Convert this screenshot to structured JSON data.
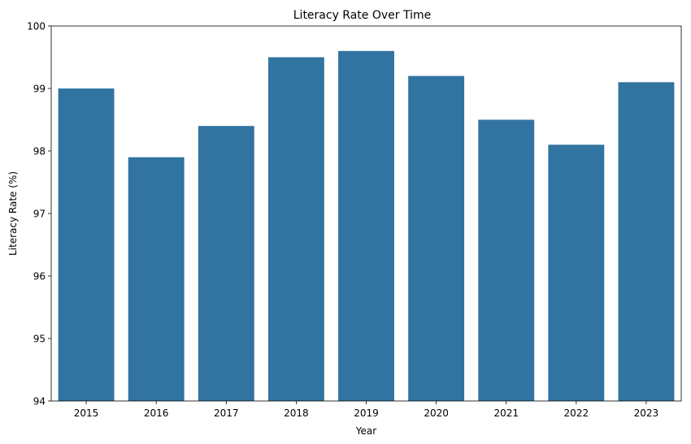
{
  "chart_data": {
    "type": "bar",
    "title": "Literacy Rate Over Time",
    "xlabel": "Year",
    "ylabel": "Literacy Rate (%)",
    "categories": [
      "2015",
      "2016",
      "2017",
      "2018",
      "2019",
      "2020",
      "2021",
      "2022",
      "2023"
    ],
    "values": [
      99.0,
      97.9,
      98.4,
      99.5,
      99.6,
      99.2,
      98.5,
      98.1,
      99.1
    ],
    "ylim": [
      94,
      100
    ],
    "yticks": [
      94,
      95,
      96,
      97,
      98,
      99,
      100
    ],
    "grid": false,
    "legend": "none",
    "bar_color": "#3274a1"
  }
}
